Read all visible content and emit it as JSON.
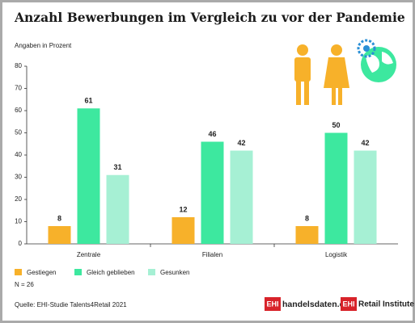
{
  "chart_data": {
    "type": "bar",
    "title": "Anzahl Bewerbungen im Vergleich zu vor der Pandemie",
    "subtitle": "Angaben in Prozent",
    "categories": [
      "Zentrale",
      "Filialen",
      "Logistik"
    ],
    "series": [
      {
        "name": "Gestiegen",
        "color": "#f7b12a",
        "values": [
          8,
          12,
          8
        ]
      },
      {
        "name": "Gleich geblieben",
        "color": "#3de89f",
        "values": [
          61,
          46,
          50
        ]
      },
      {
        "name": "Gesunken",
        "color": "#a6f0d4",
        "values": [
          31,
          42,
          42
        ]
      }
    ],
    "ylim": [
      0,
      80
    ],
    "yticks": [
      0,
      10,
      20,
      30,
      40,
      50,
      60,
      70,
      80
    ],
    "grid": false,
    "legend": "bottom-left",
    "note": "N = 26",
    "source": "Quelle: EHI-Studie Talents4Retail 2021",
    "logos": [
      "EHI",
      "handelsdaten.de",
      "EHI",
      "Retail Institute"
    ]
  }
}
